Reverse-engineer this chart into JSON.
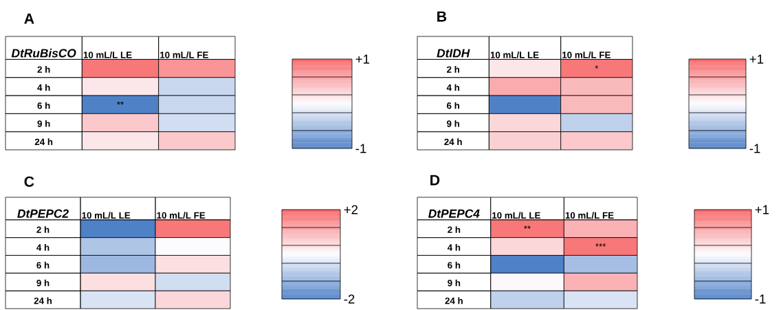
{
  "chart_data": [
    {
      "type": "heatmap",
      "title": "A",
      "ylabel": "DtRuBisCO",
      "categories": [
        "10 mL/L LE",
        "10 mL/L FE"
      ],
      "y_categories": [
        "2 h",
        "4 h",
        "6 h",
        "9 h",
        "24 h"
      ],
      "cells": [
        [
          0.9,
          0.7
        ],
        [
          0.15,
          -0.3
        ],
        [
          -1,
          -0.3
        ],
        [
          0.35,
          -0.25
        ],
        [
          0.15,
          0.35
        ]
      ],
      "cell_labels": [
        [
          null,
          null
        ],
        [
          null,
          null
        ],
        [
          "**",
          null
        ],
        [
          null,
          null
        ],
        [
          null,
          null
        ]
      ],
      "clim": [
        -1,
        1
      ],
      "cticks": [
        {
          "value": 1,
          "label": "+1"
        },
        {
          "value": -1,
          "label": "-1"
        }
      ]
    },
    {
      "type": "heatmap",
      "title": "B",
      "ylabel": "DtIDH",
      "categories": [
        "10 mL/L LE",
        "10 mL/L FE"
      ],
      "y_categories": [
        "2 h",
        "4 h",
        "6 h",
        "9 h",
        "24 h"
      ],
      "cells": [
        [
          0.15,
          0.9
        ],
        [
          0.55,
          0.45
        ],
        [
          -1,
          0.45
        ],
        [
          0.25,
          -0.35
        ],
        [
          0.3,
          0.35
        ]
      ],
      "cell_labels": [
        [
          null,
          "*"
        ],
        [
          null,
          null
        ],
        [
          null,
          null
        ],
        [
          null,
          null
        ],
        [
          null,
          null
        ]
      ],
      "clim": [
        -1,
        1
      ],
      "cticks": [
        {
          "value": 1,
          "label": "+1"
        },
        {
          "value": -1,
          "label": "-1"
        }
      ]
    },
    {
      "type": "heatmap",
      "title": "C",
      "ylabel": "DtPEPC2",
      "categories": [
        "10 mL/L LE",
        "10 mL/L FE"
      ],
      "y_categories": [
        "2 h",
        "4 h",
        "6 h",
        "9 h",
        "24 h"
      ],
      "cells": [
        [
          -2,
          1.8
        ],
        [
          -0.9,
          0
        ],
        [
          -1.1,
          0.4
        ],
        [
          0.4,
          -0.5
        ],
        [
          -0.4,
          0.5
        ]
      ],
      "clim": [
        -2,
        2
      ],
      "cticks": [
        {
          "value": 2,
          "label": "+2"
        },
        {
          "value": -2,
          "label": "-2"
        }
      ]
    },
    {
      "type": "heatmap",
      "title": "D",
      "ylabel": "DtPEPC4",
      "categories": [
        "10 mL/L LE",
        "10 mL/L FE"
      ],
      "y_categories": [
        "2 h",
        "4 h",
        "6 h",
        "9 h",
        "24 h"
      ],
      "cells": [
        [
          0.9,
          0.5
        ],
        [
          0.25,
          0.9
        ],
        [
          -1,
          -0.5
        ],
        [
          0.02,
          0.5
        ],
        [
          -0.35,
          -0.2
        ]
      ],
      "cell_labels": [
        [
          "**",
          null
        ],
        [
          null,
          "***"
        ],
        [
          null,
          null
        ],
        [
          null,
          null
        ],
        [
          null,
          null
        ]
      ],
      "clim": [
        -1,
        1
      ],
      "cticks": [
        {
          "value": 1,
          "label": "+1"
        },
        {
          "value": -1,
          "label": "-1"
        }
      ]
    }
  ]
}
